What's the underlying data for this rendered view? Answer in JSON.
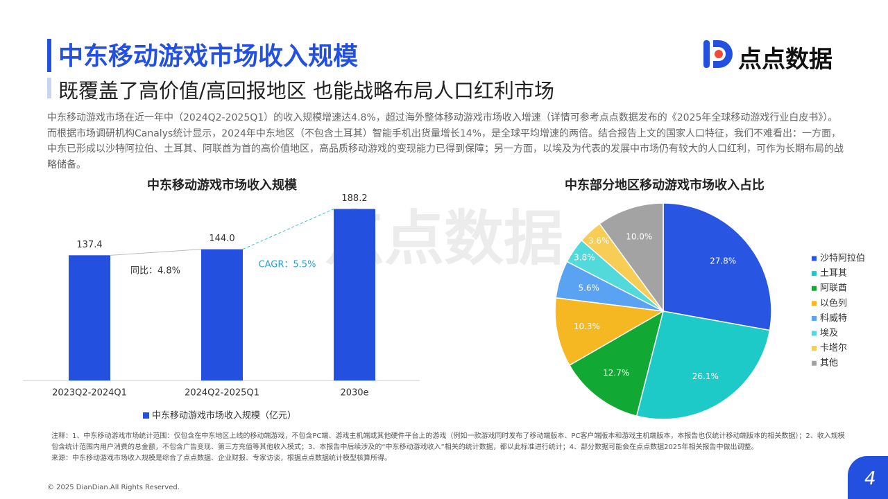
{
  "header": {
    "title": "中东移动游戏市场收入规模",
    "subtitle": "既覆盖了高价值/高回报地区 也能战略布局人口红利市场",
    "logo": "点点数据"
  },
  "paragraph": "中东移动游戏市场在近一年中（2024Q2-2025Q1）的收入规模增速达4.8%，超过海外整体移动游戏市场收入增速（详情可参考点点数据发布的《2025年全球移动游戏行业白皮书》）。而根据市场调研机构Canalys统计显示，2024年中东地区（不包含土耳其）智能手机出货量增长14%，是全球平均增速的两倍。结合报告上文的国家人口特征，我们不难看出：一方面，中东已形成以沙特阿拉伯、土耳其、阿联酋为首的高价值地区，高品质移动游戏的变现能力已得到保障；另一方面，以埃及为代表的发展中市场仍有较大的人口红利，可作为长期布局的战略储备。",
  "watermark": "点点数据",
  "chart_data": [
    {
      "type": "bar",
      "title": "中东移动游戏市场收入规模",
      "categories": [
        "2023Q2-2024Q1",
        "2024Q2-2025Q1",
        "2030e"
      ],
      "series": [
        {
          "name": "中东移动游戏市场收入规模（亿元）",
          "color": "#2450e0",
          "values": [
            137.4,
            144.0,
            188.2
          ],
          "value_labels": [
            "137.4",
            "144.0",
            "188.2"
          ]
        }
      ],
      "ylim": [
        0,
        200
      ],
      "annotations": [
        "同比：4.8%",
        "CAGR：5.5%"
      ]
    },
    {
      "type": "pie",
      "title": "中东部分地区移动游戏市场收入占比",
      "categories": [
        "沙特阿拉伯",
        "土耳其",
        "阿联酋",
        "以色列",
        "科威特",
        "埃及",
        "卡塔尔",
        "其他"
      ],
      "values": [
        27.8,
        26.1,
        12.7,
        10.3,
        5.6,
        3.8,
        3.6,
        10.0
      ],
      "value_labels": [
        "27.8%",
        "26.1%",
        "12.7%",
        "10.3%",
        "5.6%",
        "3.8%",
        "3.6%",
        "10.0%"
      ],
      "colors": [
        "#2856e2",
        "#1ecac8",
        "#12a834",
        "#f5b822",
        "#5aa2f2",
        "#52dada",
        "#f7cd55",
        "#a3a3a3"
      ]
    }
  ],
  "notes": [
    "注释：1、中东移动游戏市场统计范围：仅包含在中东地区上线的移动端游戏，不包含PC端、游戏主机端或其他硬件平台上的游戏（例如一款游戏同时发布了移动端版本、PC客户端版本和游戏主机端版本，本报告也仅统计移动端版本的相关数据）；2、收入规模包含统计范围内用户消费的总金额，不包含广告变现、第三方充值等其他收入模式；3、本报告中后续涉及的“中东移动游戏收入”相关的统计数据，都以此标准进行统计；4、部分数据可能会在点点数据2025年相关报告中做出调整。",
    "来源：中东移动游戏市场收入规模是综合了点点数据、企业财报、专家访谈，根据点点数据统计模型核算所得。"
  ],
  "footer": {
    "copyright": "© 2025 DianDian.All Rights Reserved.",
    "page": "4"
  }
}
